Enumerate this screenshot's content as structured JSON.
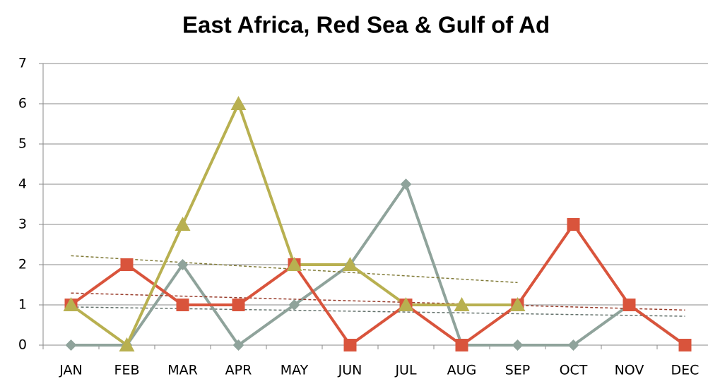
{
  "chart_data": {
    "type": "line",
    "title": "East Africa, Red Sea & Gulf of Ad",
    "categories": [
      "JAN",
      "FEB",
      "MAR",
      "APR",
      "MAY",
      "JUN",
      "JUL",
      "AUG",
      "SEP",
      "OCT",
      "NOV",
      "DEC"
    ],
    "series": [
      {
        "color": "#8fa39b",
        "marker": "diamond",
        "values": [
          0,
          0,
          2,
          0,
          1,
          2,
          4,
          0,
          0,
          0,
          1,
          0
        ]
      },
      {
        "color": "#d9543c",
        "marker": "square",
        "values": [
          1,
          2,
          1,
          1,
          2,
          0,
          1,
          0,
          1,
          3,
          1,
          0
        ]
      },
      {
        "color": "#b8b050",
        "marker": "triangle",
        "values": [
          1,
          0,
          3,
          6,
          2,
          2,
          1,
          1,
          1,
          null,
          null,
          null
        ]
      }
    ],
    "ylim": [
      0,
      7
    ],
    "yticks": [
      0,
      1,
      2,
      3,
      4,
      5,
      6,
      7
    ],
    "grid": true,
    "trendline": true
  }
}
